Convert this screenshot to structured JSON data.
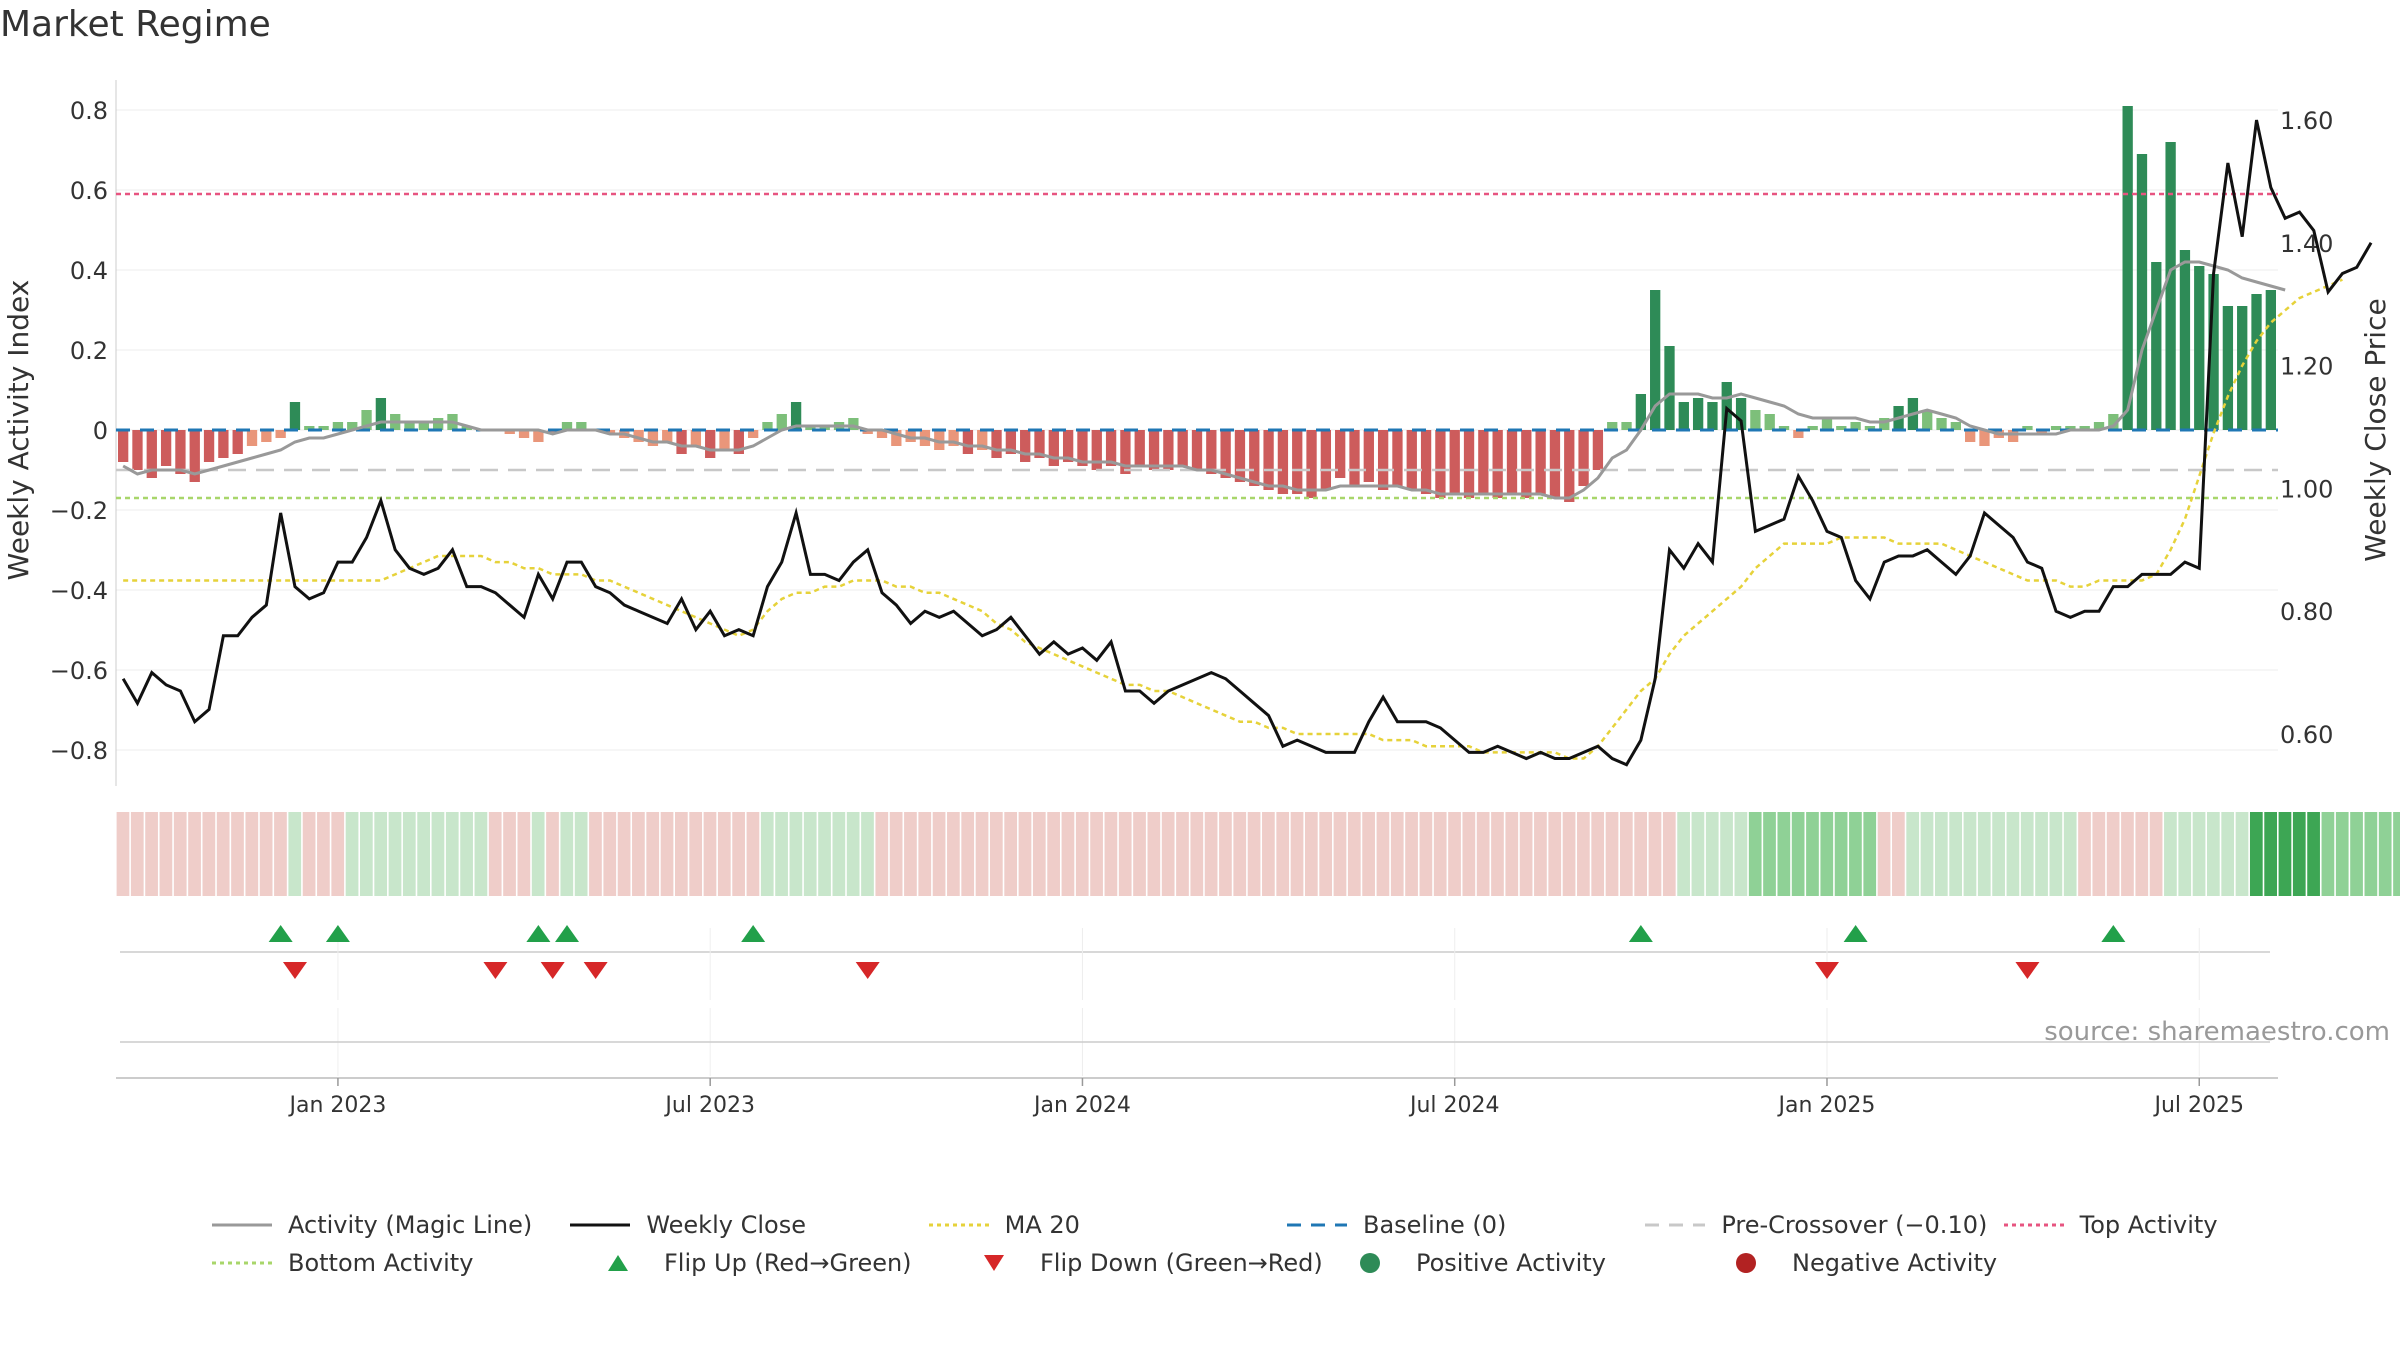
{
  "title": "Market Regime",
  "source": "source: sharemaestro.com",
  "colors": {
    "strong_green": "#2e8b57",
    "light_green": "#7dbf7a",
    "strong_red": "#cd5c5c",
    "light_red": "#e9967a",
    "magic_line": "#999999",
    "close": "#111111",
    "ma20": "#e6d23a",
    "baseline": "#1f77b4",
    "pre_crossover": "#c8c8c8",
    "top_activity": "#e75480",
    "bottom_activity": "#a8d66a",
    "flip_up": "#22a04a",
    "flip_down": "#d62728"
  },
  "legend": [
    {
      "label": "Activity (Magic Line)",
      "icon": "grey-solid-line",
      "color": "#999999",
      "style": "solid"
    },
    {
      "label": "Weekly Close",
      "icon": "black-solid-line",
      "color": "#111111",
      "style": "solid"
    },
    {
      "label": "MA 20",
      "icon": "yellow-dotted-line",
      "color": "#e6d23a",
      "style": "dotted"
    },
    {
      "label": "Baseline (0)",
      "icon": "blue-dashed-line",
      "color": "#1f77b4",
      "style": "dashed"
    },
    {
      "label": "Pre-Crossover (−0.10)",
      "icon": "grey-dashed-line",
      "color": "#c8c8c8",
      "style": "dashed"
    },
    {
      "label": "Top Activity",
      "icon": "pink-dotted-line",
      "color": "#e75480",
      "style": "dotted"
    },
    {
      "label": "Bottom Activity",
      "icon": "green-dotted-line",
      "color": "#a8d66a",
      "style": "dotted"
    },
    {
      "label": "Flip Up (Red→Green)",
      "icon": "triangle-up-icon",
      "color": "#22a04a",
      "style": "marker-up"
    },
    {
      "label": "Flip Down (Green→Red)",
      "icon": "triangle-down-icon",
      "color": "#d62728",
      "style": "marker-down"
    },
    {
      "label": "Positive Activity",
      "icon": "green-dot-icon",
      "color": "#2e8b57",
      "style": "marker-dot"
    },
    {
      "label": "Negative Activity",
      "icon": "red-dot-icon",
      "color": "#b22222",
      "style": "marker-dot"
    }
  ],
  "chart_data": {
    "type": "bar",
    "x_tick_labels": [
      "Jan 2023",
      "Jul 2023",
      "Jan 2024",
      "Jul 2024",
      "Jan 2025",
      "Jul 2025"
    ],
    "x_ticks_week_index": [
      15,
      41,
      67,
      93,
      119,
      145
    ],
    "left_axis": {
      "label": "Weekly Activity Index",
      "ticks": [
        "−0.8",
        "−0.6",
        "−0.4",
        "−0.2",
        "0",
        "0.2",
        "0.4",
        "0.6",
        "0.8"
      ],
      "range": [
        -0.88,
        0.8
      ]
    },
    "right_axis": {
      "label": "Weekly Close Price",
      "ticks": [
        "0.60",
        "0.80",
        "1.00",
        "1.20",
        "1.40",
        "1.60"
      ],
      "range": [
        0.53,
        1.63
      ]
    },
    "reference_lines": {
      "baseline": 0,
      "pre_crossover": -0.1,
      "top_activity": 0.59,
      "bottom_activity": -0.17
    },
    "activity": [
      -0.08,
      -0.1,
      -0.12,
      -0.09,
      -0.11,
      -0.13,
      -0.08,
      -0.07,
      -0.06,
      -0.04,
      -0.03,
      -0.02,
      0.07,
      0.01,
      0.01,
      0.02,
      0.02,
      0.05,
      0.08,
      0.04,
      0.02,
      0.02,
      0.03,
      0.04,
      0.01,
      0.0,
      0.0,
      -0.01,
      -0.02,
      -0.03,
      -0.01,
      0.02,
      0.02,
      0.0,
      -0.01,
      -0.02,
      -0.03,
      -0.04,
      -0.03,
      -0.06,
      -0.04,
      -0.07,
      -0.05,
      -0.06,
      -0.02,
      0.02,
      0.04,
      0.07,
      0.01,
      0.01,
      0.02,
      0.03,
      -0.01,
      -0.02,
      -0.04,
      -0.03,
      -0.04,
      -0.05,
      -0.04,
      -0.06,
      -0.05,
      -0.07,
      -0.06,
      -0.08,
      -0.07,
      -0.09,
      -0.08,
      -0.09,
      -0.1,
      -0.09,
      -0.11,
      -0.09,
      -0.1,
      -0.1,
      -0.09,
      -0.1,
      -0.11,
      -0.12,
      -0.13,
      -0.14,
      -0.15,
      -0.16,
      -0.16,
      -0.17,
      -0.15,
      -0.12,
      -0.14,
      -0.13,
      -0.15,
      -0.14,
      -0.15,
      -0.16,
      -0.17,
      -0.16,
      -0.17,
      -0.16,
      -0.17,
      -0.16,
      -0.17,
      -0.16,
      -0.17,
      -0.18,
      -0.14,
      -0.1,
      0.02,
      0.02,
      0.09,
      0.35,
      0.21,
      0.07,
      0.08,
      0.07,
      0.12,
      0.08,
      0.05,
      0.04,
      0.01,
      -0.02,
      0.01,
      0.03,
      0.01,
      0.02,
      0.01,
      0.03,
      0.06,
      0.08,
      0.05,
      0.03,
      0.02,
      -0.03,
      -0.04,
      -0.02,
      -0.03,
      0.01,
      -0.01,
      0.01,
      0.01,
      0.01,
      0.02,
      0.04,
      0.81,
      0.69,
      0.42,
      0.72,
      0.45,
      0.41,
      0.39,
      0.31,
      0.31,
      0.34,
      0.35
    ],
    "magic_line": [
      -0.09,
      -0.11,
      -0.1,
      -0.1,
      -0.1,
      -0.11,
      -0.1,
      -0.09,
      -0.08,
      -0.07,
      -0.06,
      -0.05,
      -0.03,
      -0.02,
      -0.02,
      -0.01,
      0.0,
      0.01,
      0.02,
      0.02,
      0.02,
      0.02,
      0.02,
      0.02,
      0.01,
      0.0,
      0.0,
      0.0,
      0.0,
      0.0,
      -0.01,
      0.0,
      0.0,
      0.0,
      -0.01,
      -0.01,
      -0.02,
      -0.03,
      -0.03,
      -0.04,
      -0.04,
      -0.05,
      -0.05,
      -0.05,
      -0.04,
      -0.02,
      0.0,
      0.01,
      0.01,
      0.01,
      0.01,
      0.01,
      0.0,
      0.0,
      -0.01,
      -0.02,
      -0.02,
      -0.03,
      -0.03,
      -0.04,
      -0.04,
      -0.05,
      -0.05,
      -0.06,
      -0.06,
      -0.07,
      -0.07,
      -0.08,
      -0.08,
      -0.08,
      -0.09,
      -0.09,
      -0.09,
      -0.09,
      -0.09,
      -0.1,
      -0.1,
      -0.11,
      -0.12,
      -0.13,
      -0.14,
      -0.14,
      -0.15,
      -0.15,
      -0.15,
      -0.14,
      -0.14,
      -0.14,
      -0.14,
      -0.14,
      -0.15,
      -0.15,
      -0.16,
      -0.16,
      -0.16,
      -0.16,
      -0.16,
      -0.16,
      -0.16,
      -0.16,
      -0.17,
      -0.17,
      -0.15,
      -0.12,
      -0.07,
      -0.05,
      0.0,
      0.06,
      0.09,
      0.09,
      0.09,
      0.08,
      0.08,
      0.09,
      0.08,
      0.07,
      0.06,
      0.04,
      0.03,
      0.03,
      0.03,
      0.03,
      0.02,
      0.02,
      0.03,
      0.04,
      0.05,
      0.04,
      0.03,
      0.01,
      0.0,
      -0.01,
      -0.01,
      -0.01,
      -0.01,
      -0.01,
      0.0,
      0.0,
      0.0,
      0.01,
      0.05,
      0.2,
      0.3,
      0.4,
      0.42,
      0.42,
      0.41,
      0.4,
      0.38,
      0.37,
      0.36,
      0.35
    ],
    "ma20": [
      0.85,
      0.85,
      0.85,
      0.85,
      0.85,
      0.85,
      0.85,
      0.85,
      0.85,
      0.85,
      0.85,
      0.85,
      0.85,
      0.85,
      0.85,
      0.85,
      0.85,
      0.85,
      0.85,
      0.86,
      0.87,
      0.88,
      0.89,
      0.89,
      0.89,
      0.89,
      0.88,
      0.88,
      0.87,
      0.87,
      0.86,
      0.86,
      0.86,
      0.85,
      0.85,
      0.84,
      0.83,
      0.82,
      0.81,
      0.8,
      0.79,
      0.78,
      0.77,
      0.76,
      0.77,
      0.8,
      0.82,
      0.83,
      0.83,
      0.84,
      0.84,
      0.85,
      0.85,
      0.85,
      0.84,
      0.84,
      0.83,
      0.83,
      0.82,
      0.81,
      0.8,
      0.78,
      0.77,
      0.75,
      0.74,
      0.73,
      0.72,
      0.71,
      0.7,
      0.69,
      0.68,
      0.68,
      0.67,
      0.67,
      0.66,
      0.65,
      0.64,
      0.63,
      0.62,
      0.62,
      0.61,
      0.61,
      0.6,
      0.6,
      0.6,
      0.6,
      0.6,
      0.6,
      0.59,
      0.59,
      0.59,
      0.58,
      0.58,
      0.58,
      0.58,
      0.57,
      0.57,
      0.57,
      0.57,
      0.57,
      0.57,
      0.56,
      0.56,
      0.58,
      0.61,
      0.64,
      0.67,
      0.69,
      0.73,
      0.76,
      0.78,
      0.8,
      0.82,
      0.84,
      0.87,
      0.89,
      0.91,
      0.91,
      0.91,
      0.91,
      0.92,
      0.92,
      0.92,
      0.92,
      0.91,
      0.91,
      0.91,
      0.91,
      0.9,
      0.89,
      0.88,
      0.87,
      0.86,
      0.85,
      0.85,
      0.85,
      0.84,
      0.84,
      0.85,
      0.85,
      0.85,
      0.85,
      0.86,
      0.9,
      0.95,
      1.02,
      1.09,
      1.15,
      1.2,
      1.24,
      1.27,
      1.29,
      1.31,
      1.32,
      1.33,
      1.34
    ],
    "weekly_close": [
      0.69,
      0.65,
      0.7,
      0.68,
      0.67,
      0.62,
      0.64,
      0.76,
      0.76,
      0.79,
      0.81,
      0.96,
      0.84,
      0.82,
      0.83,
      0.88,
      0.88,
      0.92,
      0.98,
      0.9,
      0.87,
      0.86,
      0.87,
      0.9,
      0.84,
      0.84,
      0.83,
      0.81,
      0.79,
      0.86,
      0.82,
      0.88,
      0.88,
      0.84,
      0.83,
      0.81,
      0.8,
      0.79,
      0.78,
      0.82,
      0.77,
      0.8,
      0.76,
      0.77,
      0.76,
      0.84,
      0.88,
      0.96,
      0.86,
      0.86,
      0.85,
      0.88,
      0.9,
      0.83,
      0.81,
      0.78,
      0.8,
      0.79,
      0.8,
      0.78,
      0.76,
      0.77,
      0.79,
      0.76,
      0.73,
      0.75,
      0.73,
      0.74,
      0.72,
      0.75,
      0.67,
      0.67,
      0.65,
      0.67,
      0.68,
      0.69,
      0.7,
      0.69,
      0.67,
      0.65,
      0.63,
      0.58,
      0.59,
      0.58,
      0.57,
      0.57,
      0.57,
      0.62,
      0.66,
      0.62,
      0.62,
      0.62,
      0.61,
      0.59,
      0.57,
      0.57,
      0.58,
      0.57,
      0.56,
      0.57,
      0.56,
      0.56,
      0.57,
      0.58,
      0.56,
      0.55,
      0.59,
      0.69,
      0.9,
      0.87,
      0.91,
      0.88,
      1.13,
      1.11,
      0.93,
      0.94,
      0.95,
      1.02,
      0.98,
      0.93,
      0.92,
      0.85,
      0.82,
      0.88,
      0.89,
      0.89,
      0.9,
      0.88,
      0.86,
      0.89,
      0.96,
      0.94,
      0.92,
      0.88,
      0.87,
      0.8,
      0.79,
      0.8,
      0.8,
      0.84,
      0.84,
      0.86,
      0.86,
      0.86,
      0.88,
      0.87,
      1.35,
      1.53,
      1.41,
      1.6,
      1.49,
      1.44,
      1.45,
      1.42,
      1.32,
      1.35,
      1.36,
      1.4
    ],
    "regime_strip": [
      "r",
      "r",
      "r",
      "r",
      "r",
      "r",
      "r",
      "r",
      "r",
      "r",
      "r",
      "r",
      "g",
      "r",
      "r",
      "r",
      "g",
      "g",
      "g",
      "g",
      "g",
      "g",
      "g",
      "g",
      "g",
      "g",
      "r",
      "r",
      "r",
      "g",
      "r",
      "g",
      "g",
      "r",
      "r",
      "r",
      "r",
      "r",
      "r",
      "r",
      "r",
      "r",
      "r",
      "r",
      "r",
      "g",
      "g",
      "g",
      "g",
      "g",
      "g",
      "g",
      "g",
      "r",
      "r",
      "r",
      "r",
      "r",
      "r",
      "r",
      "r",
      "r",
      "r",
      "r",
      "r",
      "r",
      "r",
      "r",
      "r",
      "r",
      "r",
      "r",
      "r",
      "r",
      "r",
      "r",
      "r",
      "r",
      "r",
      "r",
      "r",
      "r",
      "r",
      "r",
      "r",
      "r",
      "r",
      "r",
      "r",
      "r",
      "r",
      "r",
      "r",
      "r",
      "r",
      "r",
      "r",
      "r",
      "r",
      "r",
      "r",
      "r",
      "r",
      "r",
      "r",
      "r",
      "r",
      "r",
      "r",
      "g",
      "g",
      "g",
      "g",
      "g",
      "G",
      "G",
      "G",
      "G",
      "G",
      "G",
      "G",
      "G",
      "G",
      "r",
      "r",
      "g",
      "g",
      "g",
      "g",
      "g",
      "g",
      "g",
      "g",
      "g",
      "g",
      "g",
      "g",
      "r",
      "r",
      "r",
      "r",
      "r",
      "r",
      "g",
      "g",
      "g",
      "g",
      "g",
      "g",
      "S",
      "S",
      "S",
      "S",
      "S",
      "G",
      "G",
      "G",
      "G",
      "G",
      "G",
      "G"
    ],
    "flip_up_weeks": [
      11,
      15,
      29,
      31,
      44,
      106,
      121,
      139
    ],
    "flip_down_weeks": [
      12,
      26,
      30,
      33,
      52,
      119,
      133
    ]
  }
}
